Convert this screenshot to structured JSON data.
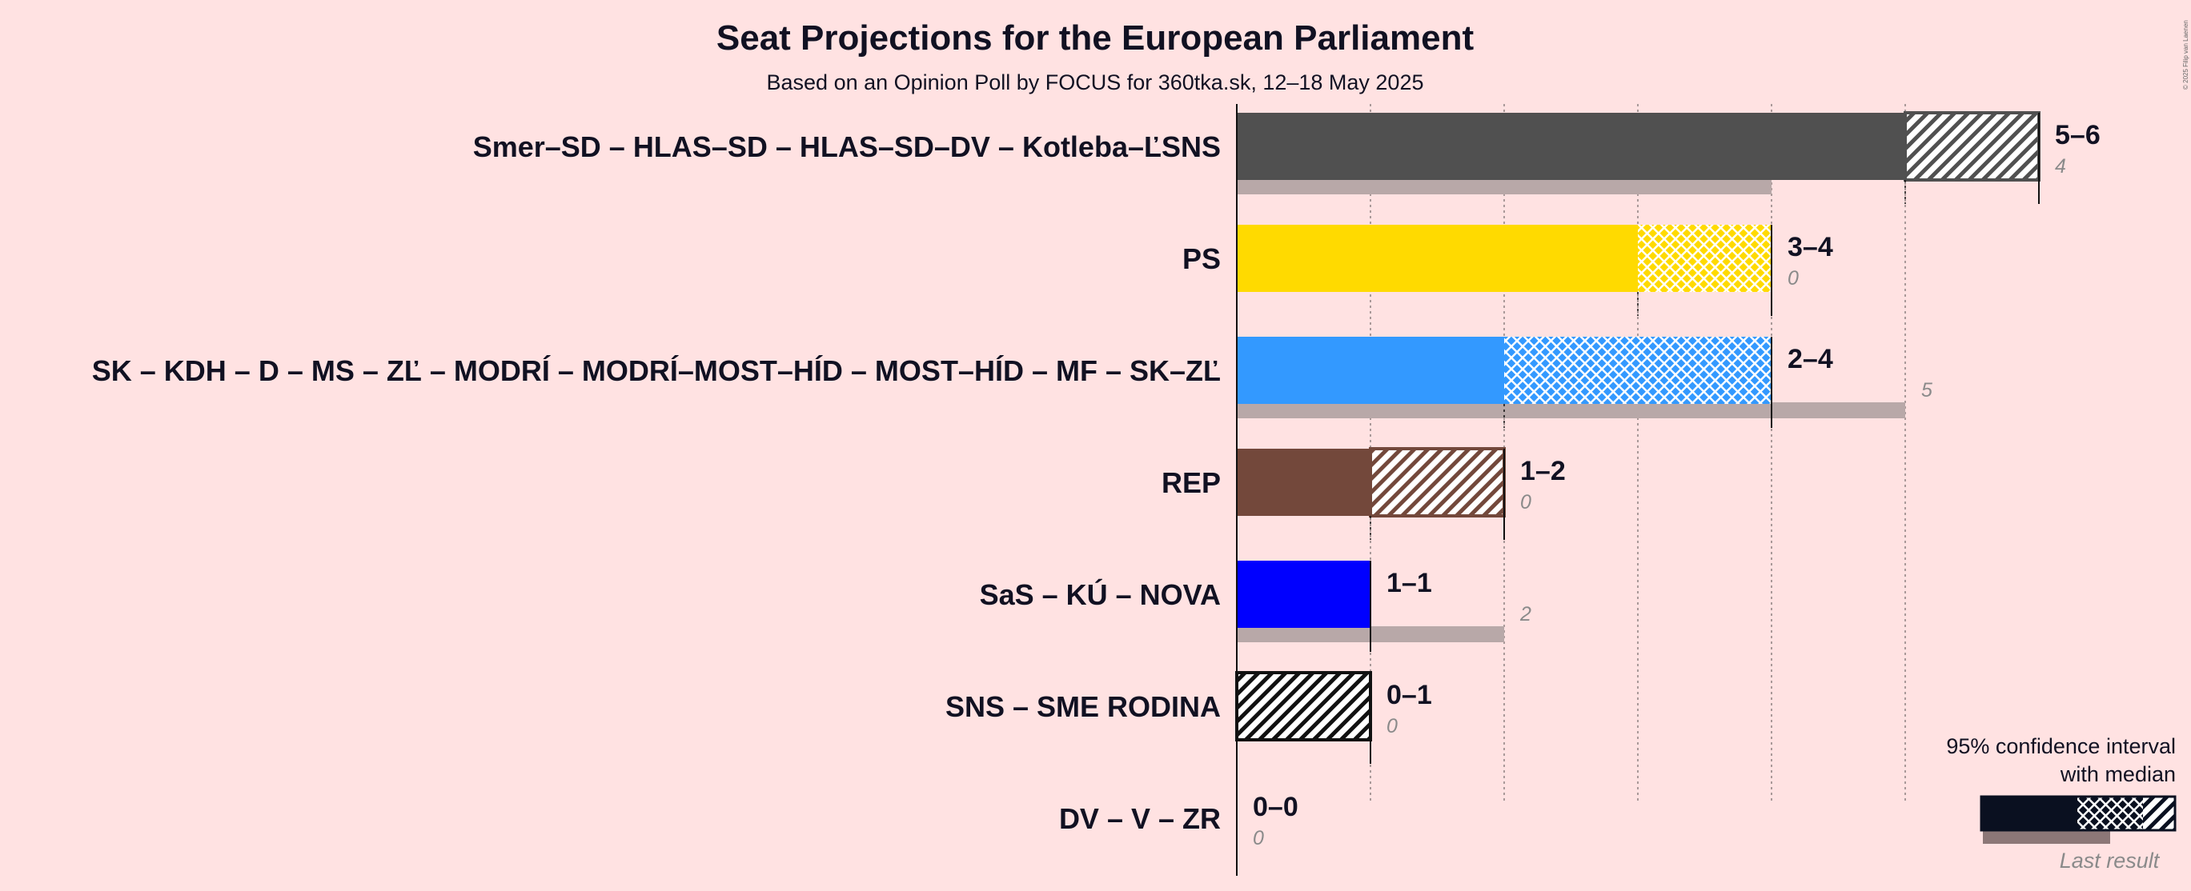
{
  "chart_data": {
    "type": "bar",
    "title": "Seat Projections for the European Parliament",
    "subtitle": "Based on an Opinion Poll by FOCUS for 360tka.sk, 12–18 May 2025",
    "copyright": "© 2025 Filip van Laenen",
    "parties": [
      {
        "name": "Smer–SD – HLAS–SD – HLAS–SD–DV – Kotleba–ĽSNS",
        "low": 5,
        "median": 5,
        "high": 6,
        "range_label": "5–6",
        "last_result": 4,
        "last_label": "4",
        "color": "#505050"
      },
      {
        "name": "PS",
        "low": 3,
        "median": 3,
        "high": 4,
        "range_label": "3–4",
        "last_result": 0,
        "last_label": "0",
        "color": "#FFDA00"
      },
      {
        "name": "SK – KDH – D – MS – ZĽ – MODRÍ – MODRÍ–MOST–HÍD – MOST–HÍD – MF – SK–ZĽ",
        "low": 2,
        "median": 2,
        "high": 4,
        "range_label": "2–4",
        "last_result": 5,
        "last_label": "5",
        "color": "#3399FF"
      },
      {
        "name": "REP",
        "low": 1,
        "median": 1,
        "high": 2,
        "range_label": "1–2",
        "last_result": 0,
        "last_label": "0",
        "color": "#73483B"
      },
      {
        "name": "SaS – KÚ – NOVA",
        "low": 1,
        "median": 1,
        "high": 1,
        "range_label": "1–1",
        "last_result": 2,
        "last_label": "2",
        "color": "#0000FF"
      },
      {
        "name": "SNS – SME RODINA",
        "low": 0,
        "median": 0,
        "high": 1,
        "range_label": "0–1",
        "last_result": 0,
        "last_label": "0",
        "color": "#111111"
      },
      {
        "name": "DV – V – ZR",
        "low": 0,
        "median": 0,
        "high": 0,
        "range_label": "0–0",
        "last_result": 0,
        "last_label": "0",
        "color": "#111111"
      }
    ],
    "x_range": [
      0,
      6
    ],
    "gridlines": [
      1,
      2,
      3,
      4,
      5
    ],
    "legend": {
      "title_line1": "95% confidence interval",
      "title_line2": "with median",
      "last_result_label": "Last result",
      "position": "bottom-right"
    }
  }
}
